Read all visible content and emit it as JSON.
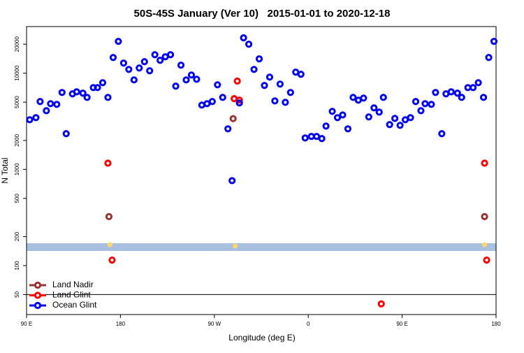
{
  "chart_data": {
    "type": "scatter",
    "title": "50S-45S January (Ver 10)   2015-01-01 to 2020-12-18",
    "xlabel": "Longitude (deg E)",
    "ylabel": "N Total",
    "xlim": [
      90,
      540
    ],
    "xticks": [
      {
        "value": 90,
        "label": "90 E"
      },
      {
        "value": 180,
        "label": "180"
      },
      {
        "value": 270,
        "label": "90 W"
      },
      {
        "value": 360,
        "label": "0"
      },
      {
        "value": 450,
        "label": "90 E"
      },
      {
        "value": 540,
        "label": "180"
      }
    ],
    "ylim": [
      31,
      30500
    ],
    "log_y": true,
    "yticks": [
      50,
      100,
      200,
      500,
      1000,
      2000,
      5000,
      10000,
      20000
    ],
    "hline": 50,
    "band": [
      142,
      171
    ],
    "band_color": "#a8bfdf",
    "legend": "lower left",
    "series": [
      {
        "name": "Land Nadir",
        "color": "#993333",
        "x": [
          169,
          288,
          529
        ],
        "values": [
          323,
          3370,
          323
        ]
      },
      {
        "name": "Land Glint",
        "color": "#ff0000",
        "x": [
          168,
          172,
          289,
          292,
          294,
          430,
          529,
          531
        ],
        "values": [
          1162,
          114,
          5435,
          8270,
          5250,
          40,
          1162,
          114
        ]
      },
      {
        "name": "Ocean Glint",
        "color": "#0000ee",
        "x": [
          93,
          99,
          103,
          109,
          113,
          119,
          124,
          128,
          134,
          138,
          144,
          148,
          154,
          158,
          163,
          168,
          173,
          178,
          183,
          188,
          193,
          198,
          203,
          208,
          213,
          218,
          223,
          228,
          233,
          238,
          243,
          248,
          253,
          258,
          263,
          268,
          273,
          278,
          283,
          287,
          294,
          298,
          303,
          308,
          313,
          318,
          323,
          328,
          333,
          338,
          343,
          348,
          353,
          357,
          363,
          368,
          373,
          377,
          383,
          388,
          393,
          398,
          403,
          408,
          413,
          418,
          423,
          428,
          432,
          438,
          443,
          448,
          453,
          458,
          463,
          468,
          472,
          478,
          482,
          488,
          492,
          497,
          503,
          507,
          513,
          518,
          523,
          528,
          533,
          538
        ],
        "values": [
          3280,
          3450,
          5070,
          4070,
          4820,
          4740,
          6300,
          2350,
          6100,
          6400,
          6200,
          5600,
          7080,
          7080,
          7960,
          5600,
          14550,
          21400,
          12730,
          10940,
          8510,
          11320,
          13160,
          10590,
          15560,
          13610,
          14800,
          15560,
          7330,
          12100,
          8510,
          9570,
          8650,
          4660,
          4820,
          5070,
          7570,
          5600,
          2640,
          764,
          4900,
          23300,
          20000,
          10940,
          14070,
          7450,
          9100,
          5150,
          7700,
          4980,
          6300,
          10240,
          9740,
          2120,
          2200,
          2200,
          2090,
          2820,
          4010,
          3450,
          3680,
          2640,
          5600,
          5240,
          5510,
          3510,
          4360,
          3940,
          5600,
          2920,
          3390,
          2870,
          3280,
          3450,
          5070,
          4070,
          4820,
          4740,
          6300,
          2350,
          6100,
          6400,
          6200,
          5600,
          7080,
          7080,
          7960,
          5600,
          14550,
          21400
        ]
      },
      {
        "color": "#ffd966",
        "x": [
          170,
          290,
          529
        ],
        "values": [
          165,
          160,
          165
        ]
      }
    ]
  }
}
